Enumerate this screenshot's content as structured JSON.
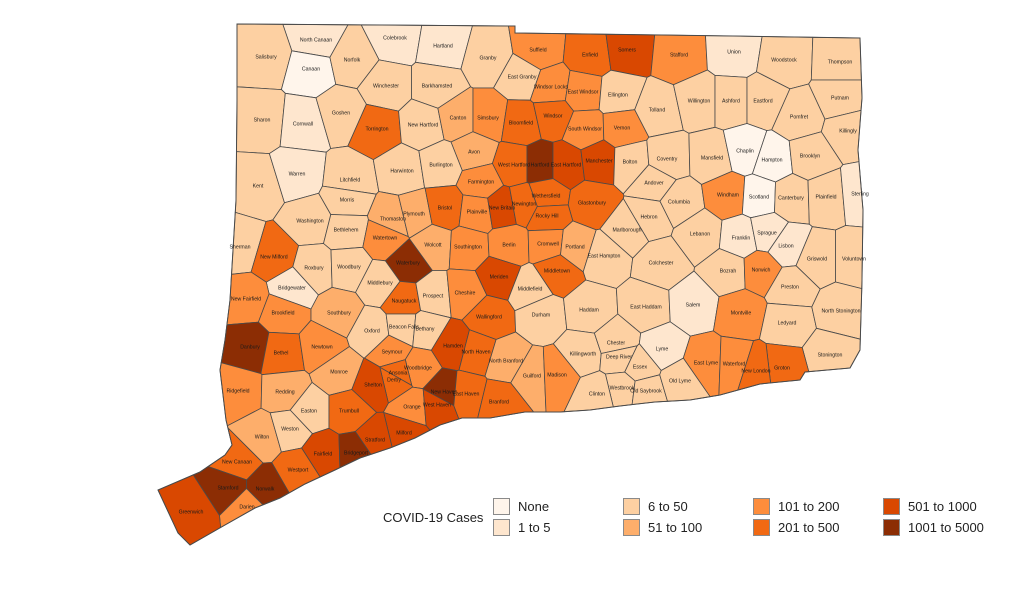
{
  "legend": {
    "title": "COVID-19 Cases",
    "items": [
      {
        "label": "None",
        "color": "#fff5eb"
      },
      {
        "label": "1 to 5",
        "color": "#fee6ce"
      },
      {
        "label": "6 to 50",
        "color": "#fdd0a2"
      },
      {
        "label": "51 to 100",
        "color": "#fdae6b"
      },
      {
        "label": "101 to 200",
        "color": "#fd8d3c"
      },
      {
        "label": "201 to 500",
        "color": "#f16913"
      },
      {
        "label": "501 to 1000",
        "color": "#d94801"
      },
      {
        "label": "1001 to 5000",
        "color": "#8c2d04"
      }
    ]
  },
  "towns": [
    {
      "name": "North Canaan",
      "cat": 1
    },
    {
      "name": "Colebrook",
      "cat": 1
    },
    {
      "name": "Hartland",
      "cat": 1
    },
    {
      "name": "Granby",
      "cat": 2
    },
    {
      "name": "Suffield",
      "cat": 4
    },
    {
      "name": "Enfield",
      "cat": 5
    },
    {
      "name": "Somers",
      "cat": 6
    },
    {
      "name": "Stafford",
      "cat": 4
    },
    {
      "name": "Union",
      "cat": 1
    },
    {
      "name": "Woodstock",
      "cat": 2
    },
    {
      "name": "Thompson",
      "cat": 2
    },
    {
      "name": "Salisbury",
      "cat": 2
    },
    {
      "name": "Canaan",
      "cat": 0
    },
    {
      "name": "Norfolk",
      "cat": 2
    },
    {
      "name": "Winchester",
      "cat": 2
    },
    {
      "name": "Barkhamsted",
      "cat": 2
    },
    {
      "name": "East Granby",
      "cat": 2
    },
    {
      "name": "Windsor Locks",
      "cat": 4
    },
    {
      "name": "East Windsor",
      "cat": 4
    },
    {
      "name": "Ellington",
      "cat": 2
    },
    {
      "name": "Putnam",
      "cat": 2
    },
    {
      "name": "Sharon",
      "cat": 2
    },
    {
      "name": "Cornwall",
      "cat": 1
    },
    {
      "name": "Goshen",
      "cat": 2
    },
    {
      "name": "Torrington",
      "cat": 5
    },
    {
      "name": "New Hartford",
      "cat": 2
    },
    {
      "name": "Canton",
      "cat": 3
    },
    {
      "name": "Simsbury",
      "cat": 4
    },
    {
      "name": "Bloomfield",
      "cat": 5
    },
    {
      "name": "Windsor",
      "cat": 5
    },
    {
      "name": "South Windsor",
      "cat": 4
    },
    {
      "name": "Vernon",
      "cat": 4
    },
    {
      "name": "Tolland",
      "cat": 2
    },
    {
      "name": "Willington",
      "cat": 2
    },
    {
      "name": "Ashford",
      "cat": 2
    },
    {
      "name": "Eastford",
      "cat": 2
    },
    {
      "name": "Pomfret",
      "cat": 2
    },
    {
      "name": "Killingly",
      "cat": 2
    },
    {
      "name": "Avon",
      "cat": 3
    },
    {
      "name": "West Hartford",
      "cat": 5
    },
    {
      "name": "Hartford",
      "cat": 7
    },
    {
      "name": "East Hartford",
      "cat": 6
    },
    {
      "name": "Manchester",
      "cat": 6
    },
    {
      "name": "Bolton",
      "cat": 2
    },
    {
      "name": "Coventry",
      "cat": 2
    },
    {
      "name": "Mansfield",
      "cat": 2
    },
    {
      "name": "Chaplin",
      "cat": 0
    },
    {
      "name": "Hampton",
      "cat": 0
    },
    {
      "name": "Brooklyn",
      "cat": 2
    },
    {
      "name": "Kent",
      "cat": 2
    },
    {
      "name": "Warren",
      "cat": 1
    },
    {
      "name": "Litchfield",
      "cat": 2
    },
    {
      "name": "Harwinton",
      "cat": 2
    },
    {
      "name": "Burlington",
      "cat": 2
    },
    {
      "name": "Farmington",
      "cat": 4
    },
    {
      "name": "Wethersfield",
      "cat": 5
    },
    {
      "name": "Glastonbury",
      "cat": 5
    },
    {
      "name": "Andover",
      "cat": 2
    },
    {
      "name": "Columbia",
      "cat": 2
    },
    {
      "name": "Windham",
      "cat": 4
    },
    {
      "name": "Scotland",
      "cat": 0
    },
    {
      "name": "Canterbury",
      "cat": 2
    },
    {
      "name": "Plainfield",
      "cat": 2
    },
    {
      "name": "Sterling",
      "cat": 1
    },
    {
      "name": "Washington",
      "cat": 2
    },
    {
      "name": "Morris",
      "cat": 2
    },
    {
      "name": "Thomaston",
      "cat": 3
    },
    {
      "name": "Plymouth",
      "cat": 3
    },
    {
      "name": "Bristol",
      "cat": 5
    },
    {
      "name": "Plainville",
      "cat": 4
    },
    {
      "name": "New Britain",
      "cat": 6
    },
    {
      "name": "Newington",
      "cat": 5
    },
    {
      "name": "Rocky Hill",
      "cat": 5
    },
    {
      "name": "Hebron",
      "cat": 2
    },
    {
      "name": "Lebanon",
      "cat": 2
    },
    {
      "name": "Franklin",
      "cat": 1
    },
    {
      "name": "Sprague",
      "cat": 1
    },
    {
      "name": "Lisbon",
      "cat": 1
    },
    {
      "name": "Griswold",
      "cat": 2
    },
    {
      "name": "Voluntown",
      "cat": 2
    },
    {
      "name": "Sherman",
      "cat": 2
    },
    {
      "name": "New Milford",
      "cat": 5
    },
    {
      "name": "Bethlehem",
      "cat": 2
    },
    {
      "name": "Watertown",
      "cat": 4
    },
    {
      "name": "Waterbury",
      "cat": 7
    },
    {
      "name": "Wolcott",
      "cat": 3
    },
    {
      "name": "Southington",
      "cat": 4
    },
    {
      "name": "Berlin",
      "cat": 4
    },
    {
      "name": "Cromwell",
      "cat": 4
    },
    {
      "name": "Portland",
      "cat": 3
    },
    {
      "name": "Marlborough",
      "cat": 2
    },
    {
      "name": "East Hampton",
      "cat": 2
    },
    {
      "name": "Colchester",
      "cat": 2
    },
    {
      "name": "Bozrah",
      "cat": 2
    },
    {
      "name": "Norwich",
      "cat": 4
    },
    {
      "name": "Roxbury",
      "cat": 2
    },
    {
      "name": "Woodbury",
      "cat": 2
    },
    {
      "name": "Middlebury",
      "cat": 2
    },
    {
      "name": "Bridgewater",
      "cat": 1
    },
    {
      "name": "Naugatuck",
      "cat": 5
    },
    {
      "name": "Prospect",
      "cat": 2
    },
    {
      "name": "Cheshire",
      "cat": 4
    },
    {
      "name": "Meriden",
      "cat": 6
    },
    {
      "name": "Middlefield",
      "cat": 2
    },
    {
      "name": "Middletown",
      "cat": 5
    },
    {
      "name": "Preston",
      "cat": 2
    },
    {
      "name": "New Fairfield",
      "cat": 4
    },
    {
      "name": "Brookfield",
      "cat": 4
    },
    {
      "name": "Southbury",
      "cat": 3
    },
    {
      "name": "Oxford",
      "cat": 2
    },
    {
      "name": "Beacon Falls",
      "cat": 2
    },
    {
      "name": "Bethany",
      "cat": 2
    },
    {
      "name": "Wallingford",
      "cat": 5
    },
    {
      "name": "Durham",
      "cat": 2
    },
    {
      "name": "Haddam",
      "cat": 2
    },
    {
      "name": "East Haddam",
      "cat": 2
    },
    {
      "name": "Salem",
      "cat": 1
    },
    {
      "name": "Montville",
      "cat": 4
    },
    {
      "name": "Ledyard",
      "cat": 2
    },
    {
      "name": "North Stonington",
      "cat": 2
    },
    {
      "name": "Danbury",
      "cat": 7
    },
    {
      "name": "Bethel",
      "cat": 5
    },
    {
      "name": "Newtown",
      "cat": 4
    },
    {
      "name": "Hamden",
      "cat": 6
    },
    {
      "name": "North Haven",
      "cat": 5
    },
    {
      "name": "North Branford",
      "cat": 3
    },
    {
      "name": "Killingworth",
      "cat": 2
    },
    {
      "name": "Chester",
      "cat": 2
    },
    {
      "name": "Deep River",
      "cat": 2
    },
    {
      "name": "Lyme",
      "cat": 1
    },
    {
      "name": "Stonington",
      "cat": 2
    },
    {
      "name": "Seymour",
      "cat": 4
    },
    {
      "name": "Woodbridge",
      "cat": 4
    },
    {
      "name": "Essex",
      "cat": 2
    },
    {
      "name": "East Lyme",
      "cat": 4
    },
    {
      "name": "Waterford",
      "cat": 4
    },
    {
      "name": "Groton",
      "cat": 5
    },
    {
      "name": "Monroe",
      "cat": 3
    },
    {
      "name": "Ansonia",
      "cat": 5
    },
    {
      "name": "Derby",
      "cat": 5
    },
    {
      "name": "New Haven",
      "cat": 7
    },
    {
      "name": "Guilford",
      "cat": 3
    },
    {
      "name": "Madison",
      "cat": 4
    },
    {
      "name": "Westbrook",
      "cat": 2
    },
    {
      "name": "Old Saybrook",
      "cat": 2
    },
    {
      "name": "Old Lyme",
      "cat": 2
    },
    {
      "name": "New London",
      "cat": 5
    },
    {
      "name": "Ridgefield",
      "cat": 4
    },
    {
      "name": "Redding",
      "cat": 3
    },
    {
      "name": "Shelton",
      "cat": 6
    },
    {
      "name": "Orange",
      "cat": 4
    },
    {
      "name": "West Haven",
      "cat": 6
    },
    {
      "name": "East Haven",
      "cat": 5
    },
    {
      "name": "Branford",
      "cat": 5
    },
    {
      "name": "Clinton",
      "cat": 2
    },
    {
      "name": "Easton",
      "cat": 2
    },
    {
      "name": "Trumbull",
      "cat": 5
    },
    {
      "name": "Wilton",
      "cat": 3
    },
    {
      "name": "Weston",
      "cat": 2
    },
    {
      "name": "Milford",
      "cat": 6
    },
    {
      "name": "Stratford",
      "cat": 6
    },
    {
      "name": "Fairfield",
      "cat": 6
    },
    {
      "name": "Bridgeport",
      "cat": 7
    },
    {
      "name": "New Canaan",
      "cat": 5
    },
    {
      "name": "Westport",
      "cat": 5
    },
    {
      "name": "Stamford",
      "cat": 7
    },
    {
      "name": "Norwalk",
      "cat": 7
    },
    {
      "name": "Darien",
      "cat": 4
    },
    {
      "name": "Greenwich",
      "cat": 6
    }
  ]
}
